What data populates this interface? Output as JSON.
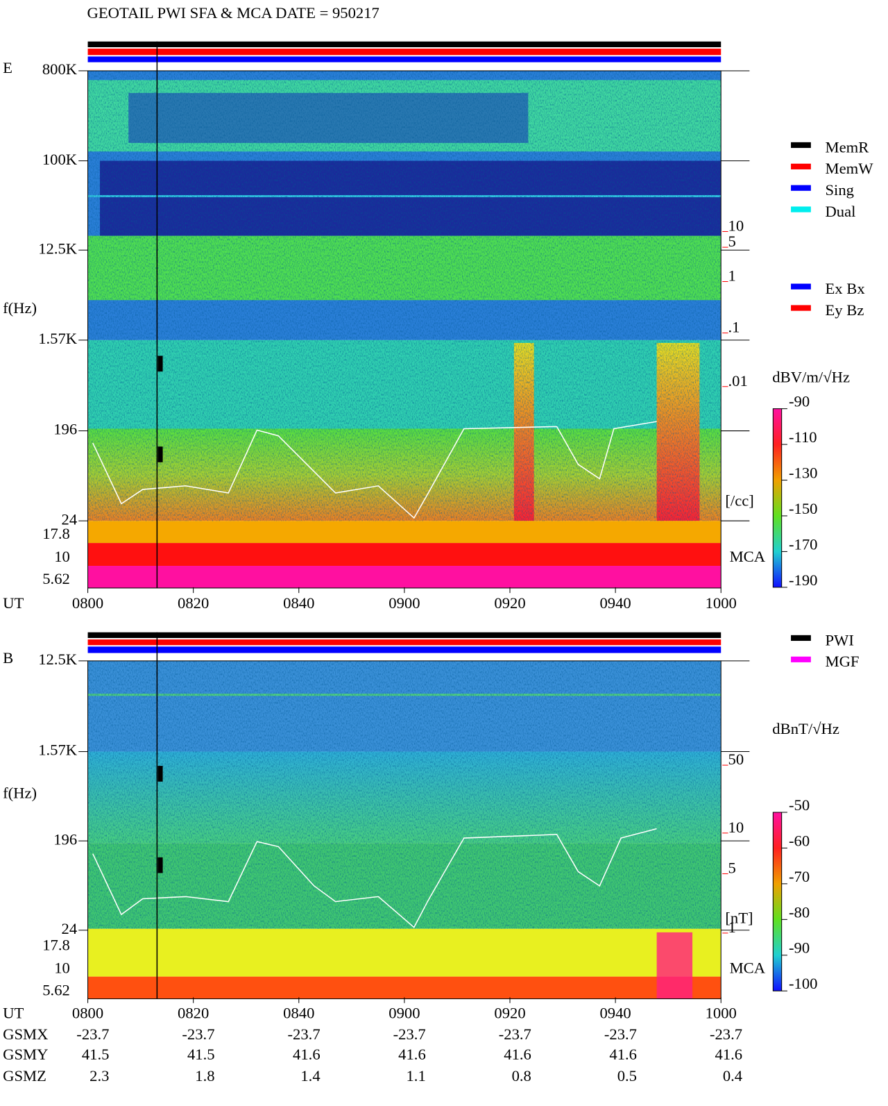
{
  "title": "GEOTAIL  PWI SFA & MCA   DATE = 950217",
  "panels": [
    {
      "label": "E",
      "y_label": "f(Hz)",
      "freq_ticks": [
        "800K",
        "100K",
        "12.5K",
        "1.57K",
        "196",
        "24"
      ],
      "mca_ticks": [
        "17.8",
        "10",
        "5.62"
      ],
      "mca_label": "MCA",
      "time_label": "UT",
      "time_ticks": [
        "0800",
        "0820",
        "0840",
        "0900",
        "0920",
        "0940",
        "1000"
      ],
      "legend": [
        {
          "name": "MemR",
          "color": "#000000"
        },
        {
          "name": "MemW",
          "color": "#ff0000"
        },
        {
          "name": "Sing",
          "color": "#0000ff"
        },
        {
          "name": "Dual",
          "color": "#00eeee"
        }
      ],
      "legend2": [
        {
          "name": "Ex Bx",
          "color": "#0000ff"
        },
        {
          "name": "Ey Bz",
          "color": "#ff0000"
        }
      ],
      "trace_ticks": [
        "10",
        "5",
        "1",
        ".1",
        ".01"
      ],
      "trace_unit": "[/cc]",
      "colorbar_title": "dBV/m/√Hz",
      "colorbar_ticks": [
        -90,
        -110,
        -130,
        -150,
        -170,
        -190
      ]
    },
    {
      "label": "B",
      "y_label": "f(Hz)",
      "freq_ticks": [
        "12.5K",
        "1.57K",
        "196",
        "24"
      ],
      "mca_ticks": [
        "17.8",
        "10",
        "5.62"
      ],
      "mca_label": "MCA",
      "time_label": "UT",
      "time_ticks": [
        "0800",
        "0820",
        "0840",
        "0900",
        "0920",
        "0940",
        "1000"
      ],
      "legend": [
        {
          "name": "PWI",
          "color": "#000000"
        },
        {
          "name": "MGF",
          "color": "#ff00ff"
        }
      ],
      "trace_ticks": [
        "50",
        "10",
        "5",
        "1"
      ],
      "trace_unit": "[nT]",
      "colorbar_title": "dBnT/√Hz",
      "colorbar_ticks": [
        -50,
        -60,
        -70,
        -80,
        -90,
        -100
      ]
    }
  ],
  "orbit": {
    "rows": [
      {
        "name": "GSMX",
        "values": [
          -23.7,
          -23.7,
          -23.7,
          -23.7,
          -23.7,
          -23.7,
          -23.7
        ]
      },
      {
        "name": "GSMY",
        "values": [
          41.5,
          41.5,
          41.6,
          41.6,
          41.6,
          41.6,
          41.6
        ]
      },
      {
        "name": "GSMZ",
        "values": [
          2.3,
          1.8,
          1.4,
          1.1,
          0.8,
          0.5,
          0.4
        ]
      }
    ]
  }
}
